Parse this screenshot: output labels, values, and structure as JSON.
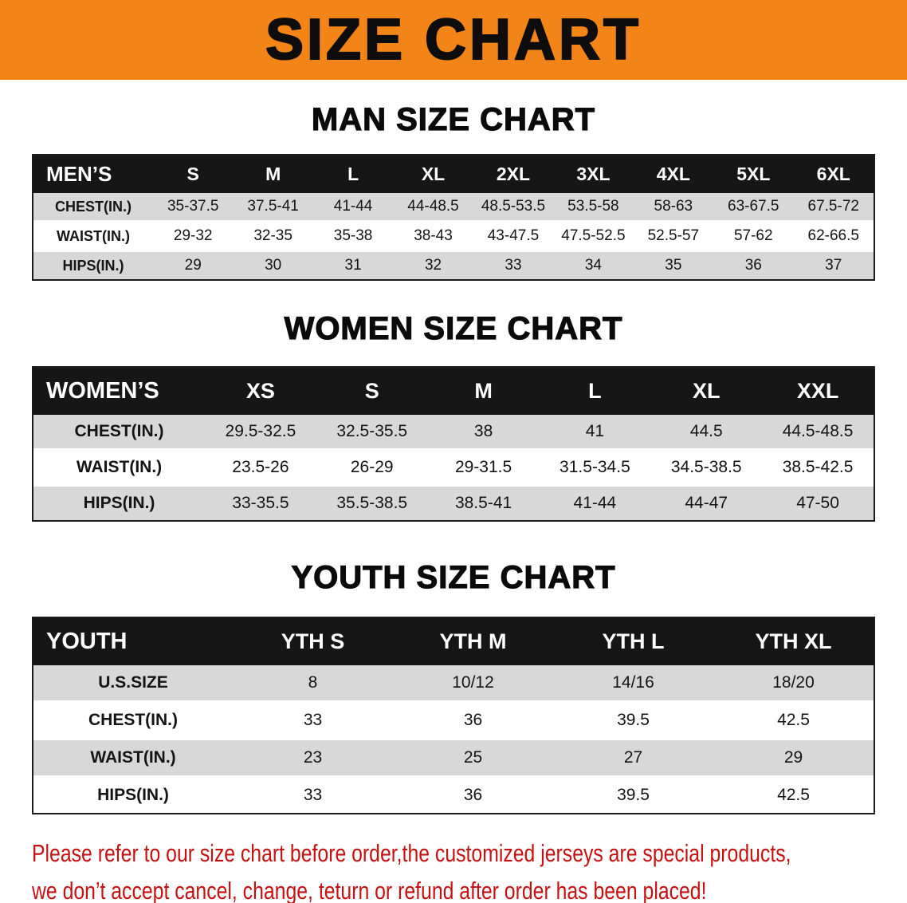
{
  "banner": {
    "title": "SIZE CHART"
  },
  "men": {
    "heading": "MAN SIZE CHART",
    "table": {
      "header": [
        "MEN’S",
        "S",
        "M",
        "L",
        "XL",
        "2XL",
        "3XL",
        "4XL",
        "5XL",
        "6XL"
      ],
      "rows": [
        [
          "CHEST(IN.)",
          "35-37.5",
          "37.5-41",
          "41-44",
          "44-48.5",
          "48.5-53.5",
          "53.5-58",
          "58-63",
          "63-67.5",
          "67.5-72"
        ],
        [
          "WAIST(IN.)",
          "29-32",
          "32-35",
          "35-38",
          "38-43",
          "43-47.5",
          "47.5-52.5",
          "52.5-57",
          "57-62",
          "62-66.5"
        ],
        [
          "HIPS(IN.)",
          "29",
          "30",
          "31",
          "32",
          "33",
          "34",
          "35",
          "36",
          "37"
        ]
      ]
    }
  },
  "women": {
    "heading": "WOMEN SIZE CHART",
    "table": {
      "header": [
        "WOMEN’S",
        "XS",
        "S",
        "M",
        "L",
        "XL",
        "XXL"
      ],
      "rows": [
        [
          "CHEST(IN.)",
          "29.5-32.5",
          "32.5-35.5",
          "38",
          "41",
          "44.5",
          "44.5-48.5"
        ],
        [
          "WAIST(IN.)",
          "23.5-26",
          "26-29",
          "29-31.5",
          "31.5-34.5",
          "34.5-38.5",
          "38.5-42.5"
        ],
        [
          "HIPS(IN.)",
          "33-35.5",
          "35.5-38.5",
          "38.5-41",
          "41-44",
          "44-47",
          "47-50"
        ]
      ]
    }
  },
  "youth": {
    "heading": "YOUTH SIZE CHART",
    "table": {
      "header": [
        "YOUTH",
        "YTH S",
        "YTH M",
        "YTH L",
        "YTH XL"
      ],
      "rows": [
        [
          "U.S.SIZE",
          "8",
          "10/12",
          "14/16",
          "18/20"
        ],
        [
          "CHEST(IN.)",
          "33",
          "36",
          "39.5",
          "42.5"
        ],
        [
          "WAIST(IN.)",
          "23",
          "25",
          "27",
          "29"
        ],
        [
          "HIPS(IN.)",
          "33",
          "36",
          "39.5",
          "42.5"
        ]
      ]
    }
  },
  "notice": {
    "line1": "Please refer to our size chart before order,the customized jerseys are special products,",
    "line2": "we don’t accept cancel, change, teturn or refund after order has been placed!"
  },
  "colors": {
    "banner_bg": "#f28418",
    "table_header_bg": "#161616",
    "row_stripe": "#d8d8d8",
    "notice_text": "#c51111"
  }
}
